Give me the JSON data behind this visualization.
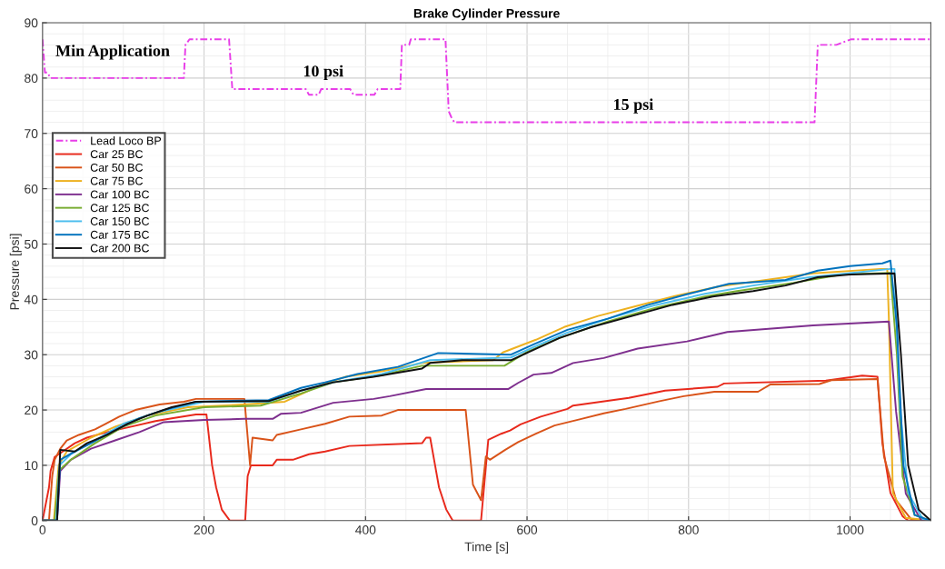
{
  "chart_data": {
    "type": "line",
    "title": "Brake Cylinder Pressure",
    "xlabel": "Time [s]",
    "ylabel": "Pressure [psi]",
    "xlim": [
      0,
      1100
    ],
    "ylim": [
      0,
      90
    ],
    "xticks": [
      0,
      200,
      400,
      600,
      800,
      1000
    ],
    "yticks": [
      0,
      10,
      20,
      30,
      40,
      50,
      60,
      70,
      80,
      90
    ],
    "grid": true,
    "legend": "top left",
    "marker": "none",
    "annotations": [
      "Min Application",
      "10 psi",
      "15 psi"
    ],
    "series": [
      {
        "name": "Lead Loco BP",
        "color": "#e83ee8",
        "line_style": "dashed",
        "x": [
          0,
          3,
          6,
          10,
          175,
          177,
          182,
          231,
          235,
          326,
          330,
          342,
          345,
          381,
          385,
          411,
          415,
          443,
          445,
          454,
          456,
          499,
          503,
          506,
          510,
          956,
          960,
          983,
          1001,
          1100
        ],
        "values": [
          87,
          81,
          81,
          80,
          80,
          86,
          87,
          87,
          78,
          78,
          77,
          77,
          78,
          78,
          77,
          77,
          78,
          78,
          86,
          86,
          87,
          87,
          74,
          73,
          72,
          72,
          86,
          86,
          87,
          87
        ]
      },
      {
        "name": "Car 25 BC",
        "color": "#e8291c",
        "x": [
          0,
          8,
          10,
          15,
          25,
          40,
          55,
          80,
          110,
          140,
          160,
          190,
          203,
          210,
          215,
          222,
          232,
          251,
          254,
          258,
          285,
          290,
          310,
          330,
          350,
          380,
          470,
          475,
          480,
          491,
          500,
          508,
          543,
          552,
          568,
          579,
          592,
          617,
          650,
          657,
          726,
          771,
          836,
          844,
          970,
          1015,
          1034,
          1040,
          1050,
          1065,
          1072,
          1100
        ],
        "values": [
          0,
          6,
          9,
          11.5,
          12.5,
          14,
          15,
          16,
          17,
          18,
          18.5,
          19.2,
          19.2,
          10,
          6,
          2,
          0,
          0,
          8,
          10,
          10,
          11,
          11,
          12,
          12.5,
          13.5,
          14,
          15,
          15,
          6,
          2,
          0,
          0,
          14.6,
          15.7,
          16.3,
          17.4,
          18.8,
          20.2,
          20.8,
          22.2,
          23.5,
          24.2,
          24.8,
          25.3,
          26.2,
          26,
          14,
          5,
          0.8,
          0,
          0
        ]
      },
      {
        "name": "Car 50 BC",
        "color": "#d95319",
        "x": [
          0,
          8,
          12,
          15,
          22,
          30,
          45,
          65,
          78,
          95,
          115,
          145,
          175,
          190,
          250,
          257,
          260,
          285,
          290,
          320,
          350,
          380,
          420,
          440,
          524,
          533,
          543,
          549,
          554,
          573,
          589,
          611,
          634,
          665,
          695,
          722,
          764,
          794,
          832,
          886,
          901,
          962,
          977,
          1034,
          1042,
          1057,
          1076,
          1100
        ],
        "values": [
          0,
          0,
          8,
          11,
          13,
          14.5,
          15.5,
          16.5,
          17.5,
          18.8,
          20,
          21,
          21.5,
          22,
          22,
          10,
          15,
          14.5,
          15.5,
          16.5,
          17.5,
          18.8,
          19,
          20,
          20,
          6.5,
          3.7,
          11.6,
          11,
          12.8,
          14.2,
          15.7,
          17.2,
          18.3,
          19.4,
          20.2,
          21.6,
          22.5,
          23.3,
          23.3,
          24.6,
          24.7,
          25.4,
          25.6,
          11.6,
          3.7,
          0.2,
          0
        ]
      },
      {
        "name": "Car 75 BC",
        "color": "#edb120",
        "x": [
          0,
          14,
          20,
          30,
          60,
          90,
          130,
          180,
          250,
          300,
          345,
          375,
          420,
          470,
          558,
          570,
          611,
          646,
          688,
          733,
          783,
          840,
          886,
          954,
          1038,
          1046,
          1048,
          1053,
          1069,
          1100
        ],
        "values": [
          0,
          0,
          10,
          12.5,
          15,
          17,
          19,
          20.5,
          21,
          21.5,
          24.5,
          26,
          27,
          28.5,
          29,
          30.4,
          32.7,
          35,
          37,
          38.7,
          40.6,
          42.4,
          43.3,
          44.7,
          45.5,
          45.5,
          36.7,
          5,
          0.5,
          0
        ]
      },
      {
        "name": "Car 100 BC",
        "color": "#7e2f8e",
        "x": [
          0,
          18,
          22,
          35,
          60,
          90,
          120,
          150,
          200,
          250,
          285,
          295,
          320,
          360,
          410,
          430,
          475,
          577,
          589,
          608,
          630,
          657,
          695,
          737,
          798,
          848,
          954,
          1048,
          1057,
          1069,
          1088,
          1100
        ],
        "values": [
          0,
          0,
          9,
          11,
          13,
          14.5,
          16,
          17.8,
          18.2,
          18.4,
          18.4,
          19.3,
          19.5,
          21.3,
          22,
          22.5,
          23.8,
          23.8,
          24.9,
          26.4,
          26.7,
          28.5,
          29.4,
          31.1,
          32.4,
          34.1,
          35.3,
          36,
          19.7,
          4.9,
          0.1,
          0
        ]
      },
      {
        "name": "Car 125 BC",
        "color": "#77ac30",
        "x": [
          0,
          15,
          20,
          35,
          65,
          100,
          140,
          200,
          270,
          320,
          360,
          420,
          470,
          572,
          600,
          640,
          700,
          760,
          820,
          860,
          930,
          990,
          1050,
          1058,
          1065,
          1080,
          1100
        ],
        "values": [
          0,
          0,
          9,
          11,
          14,
          17,
          19,
          20.5,
          20.8,
          23,
          25,
          26.3,
          28,
          28,
          30.5,
          33,
          36,
          38.5,
          40.5,
          41.5,
          43,
          44.5,
          44.8,
          30,
          8,
          1,
          0
        ]
      },
      {
        "name": "Car 150 BC",
        "color": "#4dbeee",
        "x": [
          0,
          17,
          21,
          35,
          65,
          100,
          140,
          200,
          280,
          320,
          360,
          420,
          480,
          580,
          610,
          650,
          700,
          760,
          820,
          880,
          950,
          1050,
          1055,
          1062,
          1072,
          1090,
          1100
        ],
        "values": [
          0,
          0,
          10,
          12,
          14.5,
          17.5,
          19.5,
          21.5,
          21.5,
          23.5,
          25,
          26.5,
          29,
          29.5,
          31.5,
          34,
          36.5,
          39,
          41,
          42.5,
          44,
          45.5,
          45.5,
          20,
          5,
          0.3,
          0
        ]
      },
      {
        "name": "Car 175 BC",
        "color": "#0072bd",
        "x": [
          0,
          18,
          22,
          40,
          60,
          85,
          120,
          150,
          190,
          280,
          320,
          350,
          390,
          440,
          490,
          580,
          610,
          650,
          700,
          750,
          800,
          850,
          920,
          960,
          1000,
          1040,
          1050,
          1058,
          1066,
          1080,
          1100
        ],
        "values": [
          0,
          0,
          11,
          12.5,
          14,
          16,
          18.5,
          20,
          21.5,
          21.8,
          24,
          25,
          26.5,
          27.8,
          30.3,
          30,
          32,
          34.5,
          36.5,
          39,
          41,
          42.8,
          43.5,
          45.2,
          46,
          46.5,
          47,
          35,
          10,
          1,
          0
        ]
      },
      {
        "name": "Car 200 BC",
        "color": "#111111",
        "x": [
          0,
          18,
          22,
          40,
          55,
          80,
          105,
          130,
          160,
          190,
          280,
          320,
          360,
          410,
          470,
          480,
          520,
          580,
          610,
          640,
          680,
          730,
          780,
          830,
          880,
          920,
          960,
          1000,
          1055,
          1063,
          1072,
          1085,
          1100
        ],
        "values": [
          0,
          0,
          12.8,
          12.5,
          14,
          15.5,
          17.5,
          19,
          20.5,
          21.5,
          21.6,
          23.5,
          25,
          26,
          27.5,
          28.5,
          29,
          29,
          31,
          33,
          35,
          37,
          39,
          40.5,
          41.5,
          42.5,
          44,
          44.5,
          44.7,
          30,
          10,
          2,
          0
        ]
      }
    ]
  }
}
